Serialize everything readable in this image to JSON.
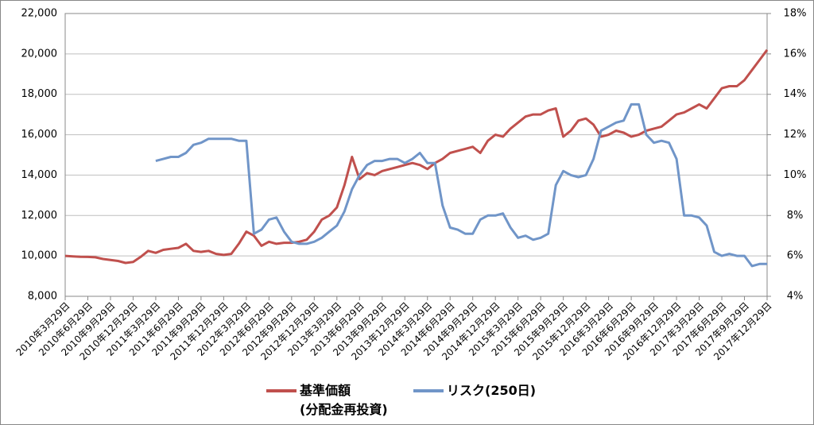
{
  "chart_data": {
    "type": "line",
    "categories": [
      "2010年3月29日",
      null,
      null,
      "2010年6月29日",
      null,
      null,
      "2010年9月29日",
      null,
      null,
      "2010年12月29日",
      null,
      null,
      "2011年3月29日",
      null,
      null,
      "2011年6月29日",
      null,
      null,
      "2011年9月29日",
      null,
      null,
      "2011年12月29日",
      null,
      null,
      "2012年3月29日",
      null,
      null,
      "2012年6月29日",
      null,
      null,
      "2012年9月29日",
      null,
      null,
      "2012年12月29日",
      null,
      null,
      "2013年3月29日",
      null,
      null,
      "2013年6月29日",
      null,
      null,
      "2013年9月29日",
      null,
      null,
      "2013年12月29日",
      null,
      null,
      "2014年3月29日",
      null,
      null,
      "2014年6月29日",
      null,
      null,
      "2014年9月29日",
      null,
      null,
      "2014年12月29日",
      null,
      null,
      "2015年3月29日",
      null,
      null,
      "2015年6月29日",
      null,
      null,
      "2015年9月29日",
      null,
      null,
      "2015年12月29日",
      null,
      null,
      "2016年3月29日",
      null,
      null,
      "2016年6月29日",
      null,
      null,
      "2016年9月29日",
      null,
      null,
      "2016年12月29日",
      null,
      null,
      "2017年3月29日",
      null,
      null,
      "2017年6月29日",
      null,
      null,
      "2017年9月29日",
      null,
      null,
      "2017年12月29日"
    ],
    "series": [
      {
        "name": "基準価額\n(分配金再投資)",
        "color": "#c0504d",
        "values": [
          10000,
          9980,
          9960,
          9950,
          9930,
          9850,
          9800,
          9750,
          9650,
          9700,
          9950,
          10250,
          10150,
          10300,
          10350,
          10400,
          10600,
          10250,
          10200,
          10250,
          10100,
          10050,
          10100,
          10600,
          11200,
          11000,
          10500,
          10700,
          10600,
          10650,
          10650,
          10700,
          10800,
          11200,
          11800,
          12000,
          12400,
          13500,
          14900,
          13800,
          14100,
          14000,
          14200,
          14300,
          14400,
          14500,
          14600,
          14500,
          14300,
          14600,
          14800,
          15100,
          15200,
          15300,
          15400,
          15100,
          15700,
          16000,
          15900,
          16300,
          16600,
          16900,
          17000,
          17000,
          17200,
          17300,
          15900,
          16200,
          16700,
          16800,
          16500,
          15900,
          16000,
          16200,
          16100,
          15900,
          16000,
          16200,
          16300,
          16400,
          16700,
          17000,
          17100,
          17300,
          17500,
          17300,
          17800,
          18300,
          18400,
          18400,
          18700,
          19200,
          19700,
          20200
        ]
      },
      {
        "name": "リスク(250日)",
        "color": "#7095c8",
        "axis": "y2",
        "values": [
          null,
          null,
          null,
          null,
          null,
          null,
          null,
          null,
          null,
          null,
          null,
          null,
          10.7,
          10.8,
          10.9,
          10.9,
          11.1,
          11.5,
          11.6,
          11.8,
          11.8,
          11.8,
          11.8,
          11.7,
          11.7,
          7.1,
          7.3,
          7.8,
          7.9,
          7.2,
          6.7,
          6.6,
          6.6,
          6.7,
          6.9,
          7.2,
          7.5,
          8.2,
          9.3,
          10.0,
          10.5,
          10.7,
          10.7,
          10.8,
          10.8,
          10.6,
          10.8,
          11.1,
          10.6,
          10.6,
          8.5,
          7.4,
          7.3,
          7.1,
          7.1,
          7.8,
          8.0,
          8.0,
          8.1,
          7.4,
          6.9,
          7.0,
          6.8,
          6.9,
          7.1,
          9.5,
          10.2,
          10.0,
          9.9,
          10.0,
          10.8,
          12.2,
          12.4,
          12.6,
          12.7,
          13.5,
          13.5,
          12.0,
          11.6,
          11.7,
          11.6,
          10.8,
          8.0,
          8.0,
          7.9,
          7.5,
          6.2,
          6.0,
          6.1,
          6.0,
          6.0,
          5.5,
          5.6,
          5.6
        ]
      }
    ],
    "ylim": [
      8000,
      22000
    ],
    "yticks": [
      {
        "value": 8000,
        "label": "8,000"
      },
      {
        "value": 10000,
        "label": "10,000"
      },
      {
        "value": 12000,
        "label": "12,000"
      },
      {
        "value": 14000,
        "label": "14,000"
      },
      {
        "value": 16000,
        "label": "16,000"
      },
      {
        "value": 18000,
        "label": "18,000"
      },
      {
        "value": 20000,
        "label": "20,000"
      },
      {
        "value": 22000,
        "label": "22,000"
      }
    ],
    "y2lim": [
      4,
      18
    ],
    "y2ticks": [
      {
        "value": 4,
        "label": "4%"
      },
      {
        "value": 6,
        "label": "6%"
      },
      {
        "value": 8,
        "label": "8%"
      },
      {
        "value": 10,
        "label": "10%"
      },
      {
        "value": 12,
        "label": "12%"
      },
      {
        "value": 14,
        "label": "14%"
      },
      {
        "value": 16,
        "label": "16%"
      },
      {
        "value": 18,
        "label": "18%"
      }
    ],
    "grid": true
  }
}
